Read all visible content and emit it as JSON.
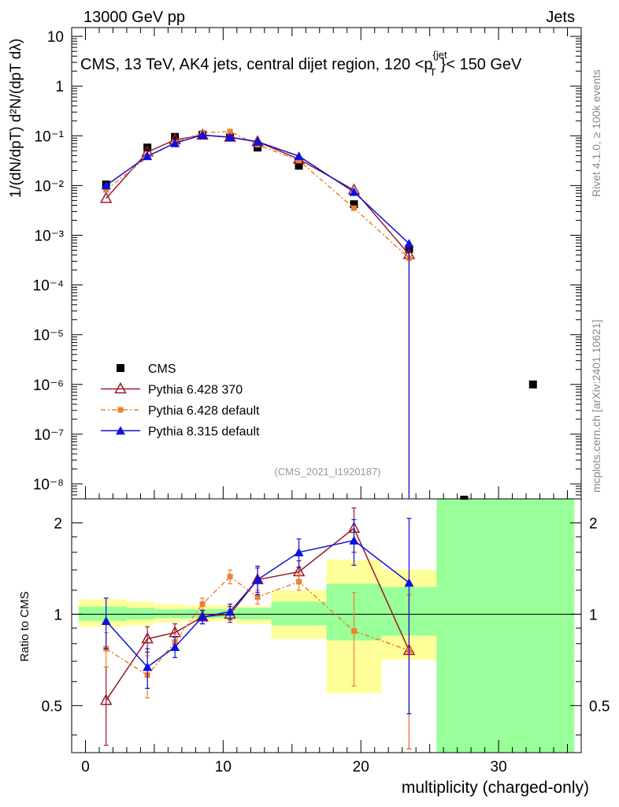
{
  "header": {
    "left": "13000 GeV pp",
    "right": "Jets",
    "plot_title": "CMS, 13 TeV, AK4 jets, central dijet region, 120 <p",
    "plot_title_super": "{jet",
    "plot_title_sub": "T",
    "plot_title_tail": "}< 150 GeV",
    "rivet_note": "Rivet 4.1.0, ≥ 100k events",
    "mcplots_note": "mcplots.cern.ch [arXiv:2401.10621]",
    "analysis_id": "(CMS_2021_I1920187)"
  },
  "axes": {
    "ylabel_top": "1/(dN/dpT) d²N/(dpT dλ)",
    "ylabel_bottom": "Ratio to CMS",
    "xlabel": "multiplicity (charged-only)",
    "x_ticks": [
      "0",
      "10",
      "20",
      "30"
    ],
    "y_ticks_top": [
      "10",
      "1",
      "10⁻¹",
      "10⁻²",
      "10⁻³",
      "10⁻⁴",
      "10⁻⁵",
      "10⁻⁶",
      "10⁻⁷",
      "10⁻⁸"
    ],
    "y_ticks_ratio": [
      "0.5",
      "1",
      "2"
    ]
  },
  "legend": [
    {
      "name": "CMS",
      "color": "#000000",
      "marker": "square"
    },
    {
      "name": "Pythia 6.428 370",
      "color": "#9a1a2b",
      "marker": "open-triangle"
    },
    {
      "name": "Pythia 6.428 default",
      "color": "#f07f30",
      "marker": "small-square"
    },
    {
      "name": "Pythia 8.315 default",
      "color": "#1010dd",
      "marker": "triangle"
    }
  ],
  "chart_data": {
    "type": "line",
    "title": "CMS, 13 TeV, AK4 jets, central dijet region, 120 < pT(jet) < 150 GeV",
    "xlabel": "multiplicity (charged-only)",
    "ylabel": "1/(dN/dpT) d²N/(dpT dλ)",
    "xlim": [
      -1,
      36
    ],
    "ylim": [
      5e-09,
      15
    ],
    "yscale": "log",
    "ratio_ylim": [
      0.35,
      2.4
    ],
    "series": [
      {
        "name": "CMS",
        "x": [
          1.5,
          4.5,
          6.5,
          8.5,
          10.5,
          12.5,
          15.5,
          19.5,
          23.5,
          27.5,
          32.5
        ],
        "values": [
          0.0105,
          0.058,
          0.095,
          0.105,
          0.093,
          0.058,
          0.025,
          0.0042,
          0.00053,
          4.5e-09,
          1e-06
        ]
      },
      {
        "name": "Pythia 6.428 370",
        "x": [
          1.5,
          4.5,
          6.5,
          8.5,
          10.5,
          12.5,
          15.5,
          19.5,
          23.5
        ],
        "values": [
          0.0055,
          0.047,
          0.083,
          0.103,
          0.094,
          0.076,
          0.034,
          0.0081,
          0.00041
        ]
      },
      {
        "name": "Pythia 6.428 default",
        "x": [
          1.5,
          4.5,
          6.5,
          8.5,
          10.5,
          12.5,
          15.5,
          19.5,
          23.5
        ],
        "values": [
          0.0082,
          0.037,
          0.073,
          0.115,
          0.122,
          0.066,
          0.032,
          0.0035,
          0.00035
        ]
      },
      {
        "name": "Pythia 8.315 default",
        "x": [
          1.5,
          4.5,
          6.5,
          8.5,
          10.5,
          12.5,
          15.5,
          19.5,
          23.5
        ],
        "values": [
          0.01,
          0.039,
          0.071,
          0.104,
          0.093,
          0.076,
          0.039,
          0.0074,
          0.00068
        ]
      }
    ],
    "ratio_series": [
      {
        "name": "Pythia 6.428 370",
        "x": [
          1.5,
          4.5,
          6.5,
          8.5,
          10.5,
          12.5,
          15.5,
          19.5,
          23.5
        ],
        "values": [
          0.52,
          0.83,
          0.87,
          0.98,
          1.0,
          1.3,
          1.38,
          1.92,
          0.76
        ],
        "err": [
          0.15,
          0.08,
          0.06,
          0.05,
          0.06,
          0.12,
          0.12,
          0.32,
          0.4
        ]
      },
      {
        "name": "Pythia 6.428 default",
        "x": [
          1.5,
          4.5,
          6.5,
          8.5,
          10.5,
          12.5,
          15.5,
          19.5,
          23.5
        ],
        "values": [
          0.77,
          0.63,
          0.81,
          1.08,
          1.33,
          1.14,
          1.28,
          0.88,
          0.76
        ],
        "err": [
          0.1,
          0.1,
          0.05,
          0.05,
          0.07,
          0.06,
          0.08,
          0.3,
          0.4
        ]
      },
      {
        "name": "Pythia 8.315 default",
        "x": [
          1.5,
          4.5,
          6.5,
          8.5,
          10.5,
          12.5,
          15.5,
          19.5,
          23.5
        ],
        "values": [
          0.95,
          0.67,
          0.78,
          0.98,
          1.02,
          1.3,
          1.6,
          1.75,
          1.27
        ],
        "err": [
          0.18,
          0.1,
          0.06,
          0.05,
          0.06,
          0.14,
          0.17,
          0.3,
          0.8
        ]
      }
    ],
    "uncertainty_bands": [
      {
        "x_range": [
          -0.5,
          3
        ],
        "stat": [
          0.95,
          1.06
        ],
        "total": [
          0.91,
          1.12
        ]
      },
      {
        "x_range": [
          3,
          5
        ],
        "stat": [
          0.96,
          1.05
        ],
        "total": [
          0.92,
          1.1
        ]
      },
      {
        "x_range": [
          5,
          7
        ],
        "stat": [
          0.97,
          1.04
        ],
        "total": [
          0.94,
          1.08
        ]
      },
      {
        "x_range": [
          7,
          9
        ],
        "stat": [
          0.97,
          1.04
        ],
        "total": [
          0.95,
          1.07
        ]
      },
      {
        "x_range": [
          9,
          11
        ],
        "stat": [
          0.97,
          1.04
        ],
        "total": [
          0.95,
          1.07
        ]
      },
      {
        "x_range": [
          11,
          13.5
        ],
        "stat": [
          0.96,
          1.05
        ],
        "total": [
          0.93,
          1.06
        ]
      },
      {
        "x_range": [
          13.5,
          17.5
        ],
        "stat": [
          0.92,
          1.1
        ],
        "total": [
          0.83,
          1.2
        ]
      },
      {
        "x_range": [
          17.5,
          21.5
        ],
        "stat": [
          0.82,
          1.26
        ],
        "total": [
          0.55,
          1.51
        ]
      },
      {
        "x_range": [
          21.5,
          25.5
        ],
        "stat": [
          0.85,
          1.23
        ],
        "total": [
          0.71,
          1.4
        ]
      },
      {
        "x_range": [
          25.5,
          35.5
        ],
        "stat": [
          0.3,
          2.4
        ],
        "total": [
          0.3,
          2.4
        ]
      }
    ]
  }
}
